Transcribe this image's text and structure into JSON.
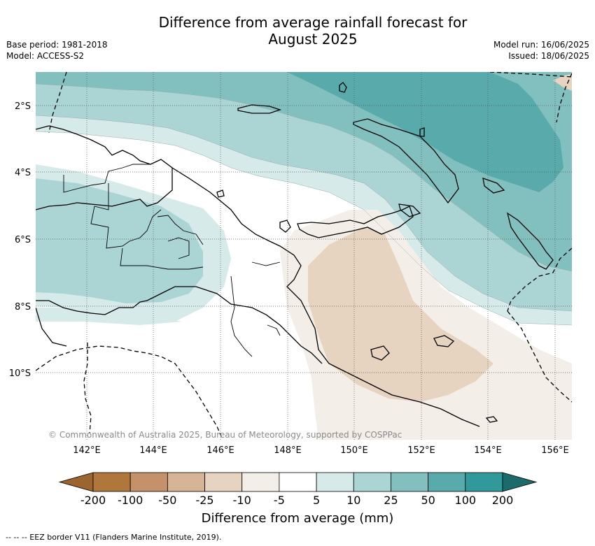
{
  "header": {
    "title_line1": "Difference from average rainfall forecast for",
    "title_line2": "August 2025",
    "base_period": "Base period: 1981-2018",
    "model": "Model: ACCESS-S2",
    "model_run": "Model run: 16/06/2025",
    "issued": "Issued: 18/06/2025"
  },
  "map": {
    "lat_labels": [
      "2°S",
      "4°S",
      "6°S",
      "8°S",
      "10°S"
    ],
    "lon_labels": [
      "142°E",
      "144°E",
      "146°E",
      "148°E",
      "150°E",
      "152°E",
      "154°E",
      "156°E"
    ],
    "attribution": "© Commonwealth of Australia 2025, Bureau of Meteorology, supported by COSPPac"
  },
  "colorbar": {
    "labels": [
      "-200",
      "-100",
      "-50",
      "-25",
      "-10",
      "-5",
      "5",
      "10",
      "25",
      "50",
      "100",
      "200"
    ],
    "colors": [
      "#9c6530",
      "#b0773c",
      "#c4916a",
      "#d6b596",
      "#e6d3c0",
      "#f3eee7",
      "#ffffff",
      "#d5eae9",
      "#abd5d4",
      "#82c0c0",
      "#58aaab",
      "#31999a",
      "#1b6b6b"
    ],
    "label": "Difference from average (mm)"
  },
  "legend_note": "--  --  -- EEZ border V11 (Flanders Marine Institute, 2019)."
}
